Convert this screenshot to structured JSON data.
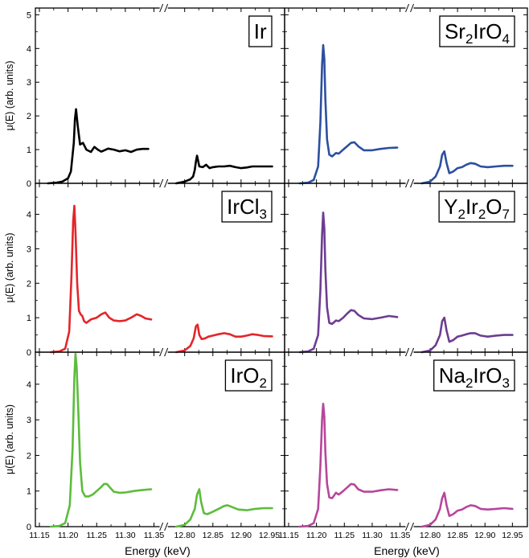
{
  "figure": {
    "ylabel": "μ(E) (arb. units)",
    "xlabel": "Energy (keV)",
    "break_mark": "//"
  },
  "chart_data": [
    {
      "type": "line",
      "label": "Ir",
      "label_parts": [
        [
          "Ir",
          false
        ]
      ],
      "color": "#000000",
      "x_segments": [
        [
          11.15,
          11.36
        ],
        [
          12.77,
          12.97
        ]
      ],
      "xticks": [
        [
          11.15,
          11.2,
          11.25,
          11.3,
          11.35
        ],
        [
          12.8,
          12.85,
          12.9,
          12.95
        ]
      ],
      "xticklabels": [
        [
          "11.15",
          "11.20",
          "11.25",
          "11.30",
          "11.35"
        ],
        [
          "12.80",
          "12.85",
          "12.90",
          "12.95"
        ]
      ],
      "ylim": [
        0,
        5.2
      ],
      "yticks": [
        0,
        1,
        2,
        3,
        4,
        5
      ],
      "yticklabels": [
        "0",
        "1",
        "2",
        "3",
        "4",
        "5"
      ],
      "series": [
        {
          "x": [
            11.165,
            11.18,
            11.19,
            11.2,
            11.205,
            11.21,
            11.212,
            11.214,
            11.217,
            11.221,
            11.226,
            11.232,
            11.24,
            11.246,
            11.252,
            11.258,
            11.27,
            11.28,
            11.29,
            11.3,
            11.31,
            11.32,
            11.33,
            11.34
          ],
          "y": [
            0,
            0.02,
            0.05,
            0.15,
            0.35,
            1.2,
            1.9,
            2.2,
            1.7,
            1.15,
            1.2,
            1.0,
            0.93,
            1.08,
            1.0,
            0.94,
            1.03,
            1.0,
            0.95,
            0.98,
            0.93,
            1.0,
            1.02,
            1.02
          ]
        },
        {
          "x": [
            12.785,
            12.8,
            12.81,
            12.815,
            12.818,
            12.82,
            12.822,
            12.826,
            12.832,
            12.838,
            12.844,
            12.85,
            12.86,
            12.87,
            12.88,
            12.89,
            12.9,
            12.91,
            12.92,
            12.93,
            12.94,
            12.955
          ],
          "y": [
            0,
            0.05,
            0.12,
            0.2,
            0.4,
            0.65,
            0.82,
            0.5,
            0.48,
            0.55,
            0.45,
            0.48,
            0.5,
            0.5,
            0.52,
            0.48,
            0.45,
            0.47,
            0.5,
            0.5,
            0.5,
            0.5
          ]
        }
      ]
    },
    {
      "type": "line",
      "label": "Sr2IrO4",
      "label_parts": [
        [
          "Sr",
          false
        ],
        [
          "2",
          true
        ],
        [
          "IrO",
          false
        ],
        [
          "4",
          true
        ]
      ],
      "color": "#2c4f9f",
      "x_segments": [
        [
          11.15,
          11.36
        ],
        [
          12.77,
          12.97
        ]
      ],
      "xticks": [
        [
          11.15,
          11.2,
          11.25,
          11.3,
          11.35
        ],
        [
          12.8,
          12.85,
          12.9,
          12.95
        ]
      ],
      "xticklabels": [
        [
          "11.15",
          "11.20",
          "11.25",
          "11.30",
          "11.35"
        ],
        [
          "12.80",
          "12.85",
          "12.90",
          "12.95"
        ]
      ],
      "ylim": [
        0,
        5.2
      ],
      "yticks": [
        0,
        1,
        2,
        3,
        4,
        5
      ],
      "yticklabels": [
        "0",
        "1",
        "2",
        "3",
        "4",
        "5"
      ],
      "series": [
        {
          "x": [
            11.17,
            11.185,
            11.195,
            11.203,
            11.207,
            11.21,
            11.212,
            11.214,
            11.216,
            11.219,
            11.223,
            11.228,
            11.235,
            11.24,
            11.248,
            11.255,
            11.262,
            11.268,
            11.275,
            11.285,
            11.3,
            11.315,
            11.33,
            11.345
          ],
          "y": [
            0,
            0.02,
            0.1,
            0.5,
            1.8,
            3.5,
            4.1,
            3.7,
            2.5,
            1.3,
            0.85,
            0.8,
            0.9,
            0.88,
            1.0,
            1.1,
            1.2,
            1.22,
            1.1,
            0.98,
            0.98,
            1.02,
            1.05,
            1.06
          ]
        },
        {
          "x": [
            12.785,
            12.8,
            12.81,
            12.818,
            12.822,
            12.826,
            12.83,
            12.835,
            12.842,
            12.85,
            12.858,
            12.866,
            12.874,
            12.882,
            12.892,
            12.905,
            12.92,
            12.935,
            12.95
          ],
          "y": [
            0,
            0.05,
            0.2,
            0.5,
            0.85,
            0.95,
            0.6,
            0.3,
            0.35,
            0.45,
            0.48,
            0.55,
            0.6,
            0.58,
            0.5,
            0.48,
            0.5,
            0.52,
            0.52
          ]
        }
      ]
    },
    {
      "type": "line",
      "label": "IrCl3",
      "label_parts": [
        [
          "IrCl",
          false
        ],
        [
          "3",
          true
        ]
      ],
      "color": "#e3262b",
      "x_segments": [
        [
          11.15,
          11.36
        ],
        [
          12.77,
          12.97
        ]
      ],
      "xticks": [
        [
          11.15,
          11.2,
          11.25,
          11.3,
          11.35
        ],
        [
          12.8,
          12.85,
          12.9,
          12.95
        ]
      ],
      "xticklabels": [
        [
          "11.15",
          "11.20",
          "11.25",
          "11.30",
          "11.35"
        ],
        [
          "12.80",
          "12.85",
          "12.90",
          "12.95"
        ]
      ],
      "ylim": [
        0,
        4.9
      ],
      "yticks": [
        0,
        1,
        2,
        3,
        4
      ],
      "yticklabels": [
        "0",
        "1",
        "2",
        "3",
        "4"
      ],
      "series": [
        {
          "x": [
            11.17,
            11.185,
            11.195,
            11.202,
            11.206,
            11.209,
            11.211,
            11.213,
            11.216,
            11.219,
            11.222,
            11.225,
            11.228,
            11.232,
            11.24,
            11.25,
            11.258,
            11.265,
            11.272,
            11.28,
            11.29,
            11.3,
            11.31,
            11.32,
            11.328,
            11.335,
            11.345
          ],
          "y": [
            0,
            0.02,
            0.1,
            0.6,
            2.2,
            3.8,
            4.25,
            3.5,
            2.0,
            1.2,
            1.1,
            1.05,
            0.9,
            0.85,
            0.95,
            1.0,
            1.1,
            1.15,
            1.0,
            0.92,
            0.9,
            0.92,
            1.0,
            1.1,
            1.05,
            0.98,
            0.95
          ]
        },
        {
          "x": [
            12.785,
            12.8,
            12.81,
            12.816,
            12.82,
            12.823,
            12.826,
            12.83,
            12.836,
            12.842,
            12.85,
            12.86,
            12.87,
            12.88,
            12.89,
            12.9,
            12.91,
            12.92,
            12.93,
            12.94,
            12.955
          ],
          "y": [
            0,
            0.05,
            0.18,
            0.4,
            0.75,
            0.8,
            0.5,
            0.38,
            0.4,
            0.45,
            0.48,
            0.52,
            0.55,
            0.52,
            0.45,
            0.45,
            0.48,
            0.52,
            0.5,
            0.47,
            0.46
          ]
        }
      ]
    },
    {
      "type": "line",
      "label": "Y2Ir2O7",
      "label_parts": [
        [
          "Y",
          false
        ],
        [
          "2",
          true
        ],
        [
          "Ir",
          false
        ],
        [
          "2",
          true
        ],
        [
          "O",
          false
        ],
        [
          "7",
          true
        ]
      ],
      "color": "#6c3d92",
      "x_segments": [
        [
          11.15,
          11.36
        ],
        [
          12.77,
          12.97
        ]
      ],
      "xticks": [
        [
          11.15,
          11.2,
          11.25,
          11.3,
          11.35
        ],
        [
          12.8,
          12.85,
          12.9,
          12.95
        ]
      ],
      "xticklabels": [
        [
          "11.15",
          "11.20",
          "11.25",
          "11.30",
          "11.35"
        ],
        [
          "12.80",
          "12.85",
          "12.90",
          "12.95"
        ]
      ],
      "ylim": [
        0,
        4.9
      ],
      "yticks": [
        0,
        1,
        2,
        3,
        4
      ],
      "yticklabels": [
        "0",
        "1",
        "2",
        "3",
        "4"
      ],
      "series": [
        {
          "x": [
            11.17,
            11.185,
            11.195,
            11.203,
            11.207,
            11.21,
            11.212,
            11.214,
            11.216,
            11.219,
            11.223,
            11.228,
            11.235,
            11.24,
            11.248,
            11.255,
            11.262,
            11.268,
            11.275,
            11.285,
            11.3,
            11.315,
            11.33,
            11.345
          ],
          "y": [
            0,
            0.02,
            0.1,
            0.5,
            1.8,
            3.4,
            4.05,
            3.6,
            2.4,
            1.3,
            0.85,
            0.82,
            0.92,
            0.9,
            1.0,
            1.12,
            1.22,
            1.2,
            1.08,
            0.98,
            0.96,
            1.0,
            1.05,
            1.02
          ]
        },
        {
          "x": [
            12.785,
            12.8,
            12.81,
            12.818,
            12.822,
            12.826,
            12.83,
            12.835,
            12.842,
            12.85,
            12.858,
            12.866,
            12.874,
            12.882,
            12.892,
            12.905,
            12.92,
            12.935,
            12.95
          ],
          "y": [
            0,
            0.05,
            0.2,
            0.5,
            0.9,
            1.0,
            0.62,
            0.3,
            0.35,
            0.45,
            0.48,
            0.52,
            0.55,
            0.55,
            0.48,
            0.45,
            0.48,
            0.5,
            0.5
          ]
        }
      ]
    },
    {
      "type": "line",
      "label": "IrO2",
      "label_parts": [
        [
          "IrO",
          false
        ],
        [
          "2",
          true
        ]
      ],
      "color": "#5cbc3c",
      "x_segments": [
        [
          11.15,
          11.36
        ],
        [
          12.77,
          12.97
        ]
      ],
      "xticks": [
        [
          11.15,
          11.2,
          11.25,
          11.3,
          11.35
        ],
        [
          12.8,
          12.85,
          12.9,
          12.95
        ]
      ],
      "xticklabels": [
        [
          "11.15",
          "11.20",
          "11.25",
          "11.30",
          "11.35"
        ],
        [
          "12.80",
          "12.85",
          "12.90",
          "12.95"
        ]
      ],
      "ylim": [
        0,
        4.9
      ],
      "yticks": [
        0,
        1,
        2,
        3,
        4
      ],
      "yticklabels": [
        "0",
        "1",
        "2",
        "3",
        "4"
      ],
      "series": [
        {
          "x": [
            11.17,
            11.185,
            11.195,
            11.203,
            11.208,
            11.211,
            11.213,
            11.215,
            11.218,
            11.221,
            11.225,
            11.23,
            11.236,
            11.243,
            11.25,
            11.257,
            11.263,
            11.268,
            11.273,
            11.28,
            11.29,
            11.3,
            11.315,
            11.33,
            11.345
          ],
          "y": [
            0,
            0.02,
            0.1,
            0.6,
            2.2,
            4.2,
            4.85,
            4.5,
            3.2,
            1.8,
            1.0,
            0.85,
            0.85,
            0.9,
            1.0,
            1.1,
            1.2,
            1.2,
            1.1,
            0.98,
            0.95,
            0.96,
            1.0,
            1.03,
            1.05
          ]
        },
        {
          "x": [
            12.785,
            12.8,
            12.81,
            12.818,
            12.822,
            12.826,
            12.829,
            12.834,
            12.84,
            12.85,
            12.86,
            12.87,
            12.876,
            12.884,
            12.895,
            12.91,
            12.925,
            12.94,
            12.955
          ],
          "y": [
            0,
            0.05,
            0.2,
            0.5,
            0.9,
            1.05,
            0.7,
            0.38,
            0.35,
            0.42,
            0.5,
            0.58,
            0.6,
            0.55,
            0.48,
            0.46,
            0.5,
            0.52,
            0.52
          ]
        }
      ]
    },
    {
      "type": "line",
      "label": "Na2IrO3",
      "label_parts": [
        [
          "Na",
          false
        ],
        [
          "2",
          true
        ],
        [
          "IrO",
          false
        ],
        [
          "3",
          true
        ]
      ],
      "color": "#b7469b",
      "x_segments": [
        [
          11.15,
          11.36
        ],
        [
          12.77,
          12.97
        ]
      ],
      "xticks": [
        [
          11.15,
          11.2,
          11.25,
          11.3,
          11.35
        ],
        [
          12.8,
          12.85,
          12.9,
          12.95
        ]
      ],
      "xticklabels": [
        [
          "11.15",
          "11.20",
          "11.25",
          "11.30",
          "11.35"
        ],
        [
          "12.80",
          "12.85",
          "12.90",
          "12.95"
        ]
      ],
      "ylim": [
        0,
        4.9
      ],
      "yticks": [
        0,
        1,
        2,
        3,
        4
      ],
      "yticklabels": [
        "0",
        "1",
        "2",
        "3",
        "4"
      ],
      "series": [
        {
          "x": [
            11.17,
            11.185,
            11.195,
            11.203,
            11.207,
            11.21,
            11.212,
            11.214,
            11.216,
            11.219,
            11.223,
            11.228,
            11.235,
            11.24,
            11.248,
            11.255,
            11.262,
            11.268,
            11.275,
            11.285,
            11.3,
            11.315,
            11.33,
            11.345
          ],
          "y": [
            0,
            0.02,
            0.1,
            0.5,
            1.7,
            3.0,
            3.45,
            3.1,
            2.1,
            1.2,
            0.82,
            0.8,
            0.95,
            0.9,
            1.0,
            1.1,
            1.2,
            1.18,
            1.05,
            0.98,
            0.98,
            1.02,
            1.05,
            1.03
          ]
        },
        {
          "x": [
            12.785,
            12.8,
            12.81,
            12.818,
            12.822,
            12.826,
            12.83,
            12.835,
            12.842,
            12.85,
            12.858,
            12.866,
            12.874,
            12.882,
            12.892,
            12.905,
            12.92,
            12.935,
            12.95
          ],
          "y": [
            0,
            0.05,
            0.2,
            0.5,
            0.8,
            0.95,
            0.6,
            0.3,
            0.35,
            0.45,
            0.48,
            0.55,
            0.6,
            0.58,
            0.5,
            0.48,
            0.5,
            0.52,
            0.5
          ]
        }
      ]
    }
  ]
}
